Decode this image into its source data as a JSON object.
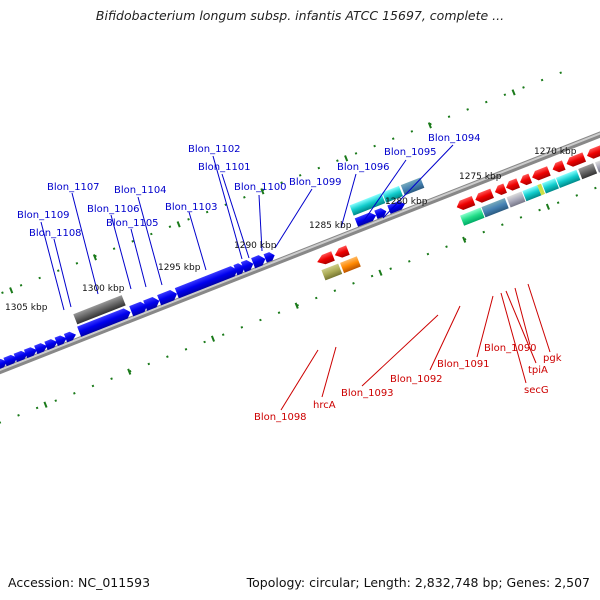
{
  "title": "Bifidobacterium longum subsp. infantis ATCC 15697, complete ...",
  "footer": {
    "accession": "Accession: NC_011593",
    "topology": "Topology: circular; Length: 2,832,748 bp; Genes: 2,507"
  },
  "scale_labels": [
    "1270 kbp",
    "1275 kbp",
    "1280 kbp",
    "1285 kbp",
    "1290 kbp",
    "1295 kbp",
    "1300 kbp",
    "1305 kbp"
  ],
  "forward_gene_labels": [
    "Blon_1094",
    "Blon_1095",
    "Blon_1096",
    "Blon_1099",
    "Blon_1100",
    "Blon_1101",
    "Blon_1102",
    "Blon_1103",
    "Blon_1104",
    "Blon_1105",
    "Blon_1106",
    "Blon_1107",
    "Blon_1108",
    "Blon_1109"
  ],
  "reverse_gene_labels": [
    "pgk",
    "Blon_1090",
    "tpiA",
    "secG",
    "Blon_1091",
    "Blon_1092",
    "Blon_1093",
    "hrcA",
    "Blon_1098"
  ],
  "colors": {
    "forward_label": "#0000cc",
    "reverse_label": "#cc0000",
    "forward_gene": "#0000ee",
    "reverse_gene": "#ee0000",
    "backbone": "#888888",
    "tick": "#1a7a1a"
  }
}
